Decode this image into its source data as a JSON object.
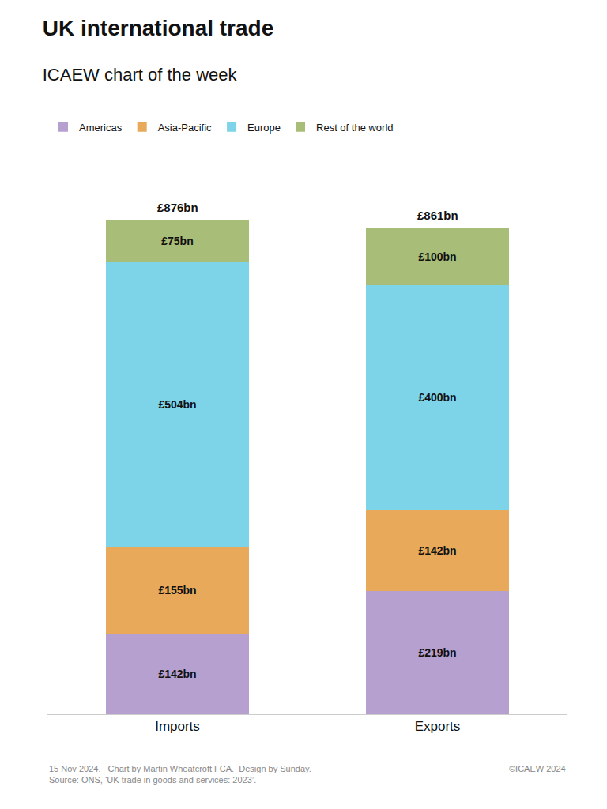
{
  "chart_data": {
    "type": "bar",
    "title": "UK international trade",
    "subtitle": "ICAEW chart of the week",
    "categories": [
      "Imports",
      "Exports"
    ],
    "stacked": true,
    "data_labels": true,
    "series": [
      {
        "name": "Americas",
        "color": "#b5a0d0",
        "values": [
          142,
          219
        ],
        "value_labels": [
          "£142bn",
          "£219bn"
        ]
      },
      {
        "name": "Asia-Pacific",
        "color": "#e8a95a",
        "values": [
          155,
          142
        ],
        "value_labels": [
          "£155bn",
          "£142bn"
        ]
      },
      {
        "name": "Europe",
        "color": "#7dd4e8",
        "values": [
          504,
          400
        ],
        "value_labels": [
          "£504bn",
          "£400bn"
        ]
      },
      {
        "name": "Rest of the world",
        "color": "#a8bd78",
        "values": [
          75,
          100
        ],
        "value_labels": [
          "£75bn",
          "£100bn"
        ]
      }
    ],
    "annotations": [
      {
        "x": "Imports",
        "y": 876,
        "text": "£876bn"
      },
      {
        "x": "Exports",
        "y": 861,
        "text": "£861bn"
      }
    ],
    "footnotes": [
      "15 Nov 2024.   Chart by Martin Wheatcroft FCA.  Design by Sunday.\nSource: ONS, ‘UK trade in goods and services: 2023’.",
      "©ICAEW 2024"
    ],
    "ylim": [
      0,
      1000
    ],
    "yticks": [],
    "tick_labels": "x",
    "grid": false,
    "legend": "top"
  }
}
